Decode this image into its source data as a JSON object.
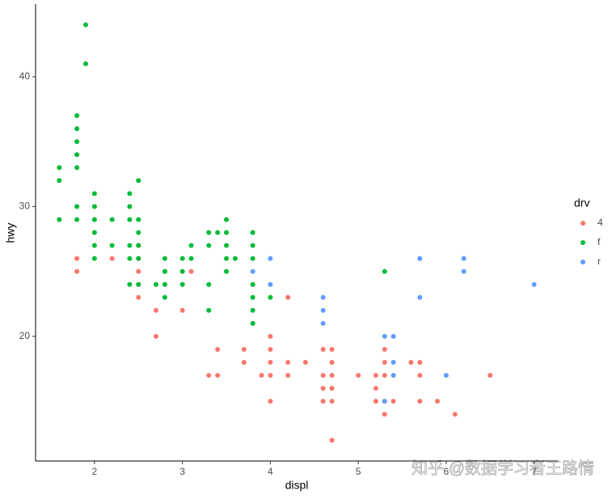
{
  "chart_data": {
    "type": "scatter",
    "x_label": "displ",
    "y_label": "hwy",
    "legend_title": "drv",
    "xlim": [
      1.33,
      7.27
    ],
    "ylim": [
      10.4,
      45.6
    ],
    "xticks": [
      2,
      3,
      4,
      5,
      6,
      7
    ],
    "yticks": [
      20,
      30,
      40
    ],
    "grid": false,
    "legend_position": "right",
    "series": [
      {
        "name": "4",
        "color": "#F8766D",
        "x": [
          1.8,
          1.8,
          2.2,
          2.5,
          2.5,
          2.5,
          2.5,
          2.5,
          2.7,
          2.7,
          2.8,
          3.0,
          3.1,
          3.3,
          3.4,
          3.4,
          3.7,
          3.7,
          3.9,
          4.0,
          4.0,
          4.0,
          4.0,
          4.0,
          4.2,
          4.2,
          4.2,
          4.4,
          4.6,
          4.6,
          4.6,
          4.6,
          4.7,
          4.7,
          4.7,
          4.7,
          4.7,
          4.7,
          5.0,
          5.2,
          5.2,
          5.2,
          5.3,
          5.3,
          5.3,
          5.3,
          5.3,
          5.4,
          5.4,
          5.6,
          5.7,
          5.7,
          5.7,
          5.9,
          6.1,
          6.5
        ],
        "values": [
          26,
          25,
          26,
          27,
          26,
          25,
          24,
          23,
          22,
          20,
          25,
          22,
          25,
          17,
          19,
          17,
          19,
          18,
          17,
          20,
          19,
          18,
          17,
          15,
          23,
          18,
          17,
          18,
          19,
          17,
          16,
          15,
          19,
          18,
          17,
          16,
          15,
          12,
          17,
          17,
          16,
          15,
          19,
          18,
          17,
          15,
          14,
          17,
          15,
          18,
          18,
          17,
          15,
          15,
          14,
          17
        ]
      },
      {
        "name": "f",
        "color": "#00BA38",
        "x": [
          1.9,
          1.9,
          1.6,
          1.6,
          1.6,
          1.8,
          1.8,
          1.8,
          1.8,
          1.8,
          1.8,
          1.8,
          2.0,
          2.0,
          2.0,
          2.0,
          2.0,
          2.0,
          2.2,
          2.2,
          2.4,
          2.4,
          2.4,
          2.4,
          2.4,
          2.4,
          2.5,
          2.5,
          2.5,
          2.5,
          2.5,
          2.5,
          2.7,
          2.8,
          2.8,
          2.8,
          2.8,
          3.0,
          3.0,
          3.0,
          3.1,
          3.1,
          3.3,
          3.3,
          3.3,
          3.3,
          3.4,
          3.5,
          3.5,
          3.5,
          3.5,
          3.5,
          3.6,
          3.8,
          3.8,
          3.8,
          3.8,
          3.8,
          3.8,
          3.8,
          4.0,
          5.3
        ],
        "values": [
          44,
          41,
          33,
          32,
          29,
          37,
          36,
          35,
          34,
          33,
          30,
          29,
          31,
          30,
          29,
          28,
          27,
          26,
          29,
          27,
          31,
          30,
          29,
          27,
          26,
          24,
          32,
          29,
          28,
          27,
          26,
          24,
          24,
          26,
          25,
          24,
          23,
          26,
          25,
          24,
          27,
          26,
          28,
          27,
          24,
          22,
          28,
          29,
          28,
          27,
          26,
          25,
          26,
          28,
          27,
          26,
          24,
          23,
          22,
          21,
          23,
          25
        ]
      },
      {
        "name": "r",
        "color": "#619CFF",
        "x": [
          3.8,
          4.0,
          4.0,
          4.6,
          4.6,
          4.6,
          5.3,
          5.4,
          5.4,
          5.4,
          5.3,
          5.7,
          5.7,
          6.0,
          6.2,
          6.2,
          7.0
        ],
        "values": [
          25,
          26,
          24,
          23,
          22,
          21,
          20,
          20,
          18,
          17,
          15,
          26,
          23,
          17,
          26,
          25,
          24
        ]
      }
    ]
  },
  "watermark": "知乎 @数据学习者王路情"
}
